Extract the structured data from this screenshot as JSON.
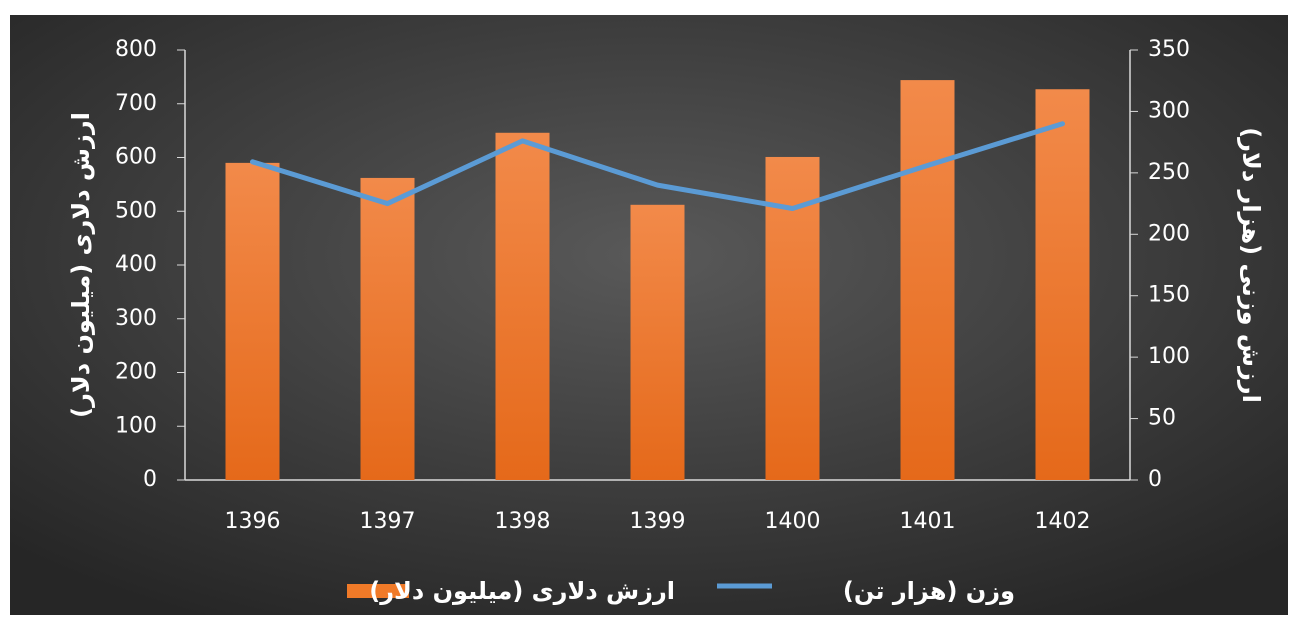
{
  "chart_data": {
    "type": "bar_line",
    "categories": [
      "1396",
      "1397",
      "1398",
      "1399",
      "1400",
      "1401",
      "1402"
    ],
    "series": [
      {
        "name": "ارزش دلاری (میلیون دلار)",
        "type": "bar",
        "color": "#f07a28",
        "axis": "y",
        "values": [
          590,
          562,
          646,
          512,
          601,
          744,
          727
        ]
      },
      {
        "name": "وزن (هزار تن)",
        "type": "line",
        "color": "#5b9bd5",
        "axis": "y2",
        "values": [
          259,
          225,
          276,
          240,
          221,
          256,
          290
        ]
      }
    ],
    "ylabel": "ارزش دلاری (میلیون دلار)",
    "y2label": "ارزش وزنی (هزار دلار)",
    "ylim": [
      0,
      800
    ],
    "yticks": [
      0,
      100,
      200,
      300,
      400,
      500,
      600,
      700,
      800
    ],
    "y2lim": [
      0,
      350
    ],
    "y2ticks": [
      0,
      50,
      100,
      150,
      200,
      250,
      300,
      350
    ],
    "legend": "bottom"
  }
}
